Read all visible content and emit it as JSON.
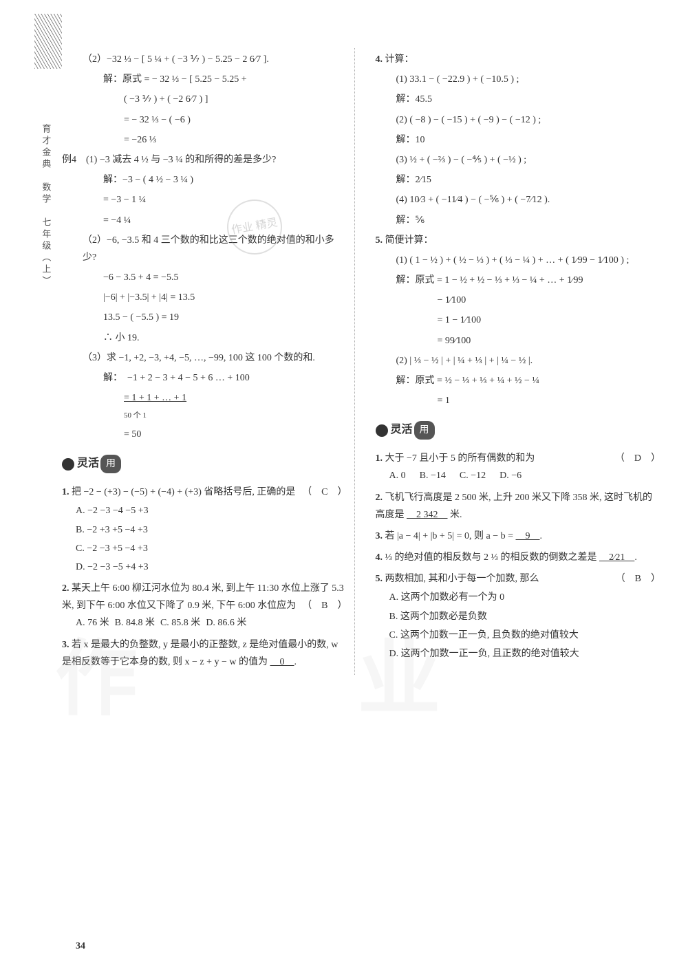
{
  "sidebar_text": "育才金典　数学　七年级（上）",
  "stamp_text": "作业\n精灵",
  "watermark1": "作",
  "watermark2": "业",
  "page_number": "34",
  "left": {
    "p2_header": "（2）−32 ⅓ − [ 5 ¼ + ( −3 ⅐ ) − 5.25 − 2 6⁄7 ].",
    "p2_l1": "解：原式 = − 32 ⅓ − [ 5.25 − 5.25 +",
    "p2_l2": "( −3 ⅐ ) + ( −2 6⁄7 ) ]",
    "p2_l3": "= − 32 ⅓ − ( −6 )",
    "p2_l4": "= −26 ⅓",
    "ex4_title": "例4　(1) −3 减去 4 ½ 与 −3 ¼ 的和所得的差是多少?",
    "ex4_l1": "解：−3 − ( 4 ½ − 3 ¼ )",
    "ex4_l2": "= −3 − 1 ¼",
    "ex4_l3": "= −4 ¼",
    "ex4_p2": "（2）−6, −3.5 和 4 三个数的和比这三个数的绝对值的和小多少?",
    "ex4_p2_l1": "−6 − 3.5 + 4 = −5.5",
    "ex4_p2_l2": "|−6| + |−3.5| + |4| = 13.5",
    "ex4_p2_l3": "13.5 − ( −5.5 ) = 19",
    "ex4_p2_l4": "∴ 小 19.",
    "ex4_p3": "（3）求 −1, +2, −3, +4, −5, …, −99, 100 这 100 个数的和.",
    "ex4_p3_l1": "解：　−1 + 2 − 3 + 4 − 5 + 6 … + 100",
    "ex4_p3_l2": "= 1 + 1 + … + 1",
    "ex4_p3_l2b": "50 个 1",
    "ex4_p3_l3": "= 50",
    "section_label": "灵活",
    "section_pill": "用",
    "q1": "把 −2 − (+3) − (−5) + (−4) + (+3) 省略括号后, 正确的是",
    "q1_ans": "（　C　）",
    "q1_a": "A. −2 −3 −4 −5 +3",
    "q1_b": "B. −2 +3 +5 −4 +3",
    "q1_c": "C. −2 −3 +5 −4 +3",
    "q1_d": "D. −2 −3 −5 +4 +3",
    "q2": "某天上午 6:00 柳江河水位为 80.4 米, 到上午 11:30 水位上涨了 5.3 米, 到下午 6:00 水位又下降了 0.9 米, 下午 6:00 水位应为",
    "q2_ans": "（　B　）",
    "q2_a": "A. 76 米",
    "q2_b": "B. 84.8 米",
    "q2_c": "C. 85.8 米",
    "q2_d": "D. 86.6 米",
    "q3": "若 x 是最大的负整数, y 是最小的正整数, z 是绝对值最小的数, w 是相反数等于它本身的数, 则 x − z + y − w 的值为",
    "q3_ans": "　0　"
  },
  "right": {
    "q4_title": "4. 计算：",
    "q4_1": "(1) 33.1 − ( −22.9 ) + ( −10.5 ) ;",
    "q4_1_ans": "解：45.5",
    "q4_2": "(2) ( −8 ) − ( −15 ) + ( −9 ) − ( −12 ) ;",
    "q4_2_ans": "解：10",
    "q4_3": "(3) ½ + ( −⅔ ) − ( −⅘ ) + ( −½ ) ;",
    "q4_3_ans": "解：2⁄15",
    "q4_4": "(4) 10⁄3 + ( −11⁄4 ) − ( −⅚ ) + ( −7⁄12 ).",
    "q4_4_ans": "解：⅚",
    "q5_title": "5. 简便计算：",
    "q5_1": "(1) ( 1 − ½ ) + ( ½ − ⅓ ) + ( ⅓ − ¼ ) + … + ( 1⁄99 − 1⁄100 ) ;",
    "q5_1_l1": "解：原式 = 1 − ½ + ½ − ⅓ + ⅓ − ¼ + … + 1⁄99",
    "q5_1_l1b": "− 1⁄100",
    "q5_1_l2": "= 1 − 1⁄100",
    "q5_1_l3": "= 99⁄100",
    "q5_2": "(2) | ⅓ − ½ | + | ¼ + ⅓ | + | ¼ − ½ |.",
    "q5_2_l1": "解：原式 = ½ − ⅓ + ⅓ + ¼ + ½ − ¼",
    "q5_2_l2": "= 1",
    "section_label": "灵活",
    "section_pill": "用",
    "rq1": "大于 −7 且小于 5 的所有偶数的和为",
    "rq1_ans": "（　D　）",
    "rq1_a": "A. 0",
    "rq1_b": "B. −14",
    "rq1_c": "C. −12",
    "rq1_d": "D. −6",
    "rq2": "飞机飞行高度是 2 500 米, 上升 200 米又下降 358 米, 这时飞机的高度是",
    "rq2_ans": "　2 342　",
    "rq2_tail": "米.",
    "rq3": "若 |a − 4| + |b + 5| = 0, 则 a − b =",
    "rq3_ans": "　9　",
    "rq4_a": "⅓ 的绝对值的相反数与 2 ⅓ 的相反数的倒数之差是",
    "rq4_ans": "　2⁄21　",
    "rq5": "两数相加, 其和小于每一个加数, 那么",
    "rq5_ans": "（　B　）",
    "rq5_a": "A. 这两个加数必有一个为 0",
    "rq5_b": "B. 这两个加数必是负数",
    "rq5_c": "C. 这两个加数一正一负, 且负数的绝对值较大",
    "rq5_d": "D. 这两个加数一正一负, 且正数的绝对值较大"
  }
}
